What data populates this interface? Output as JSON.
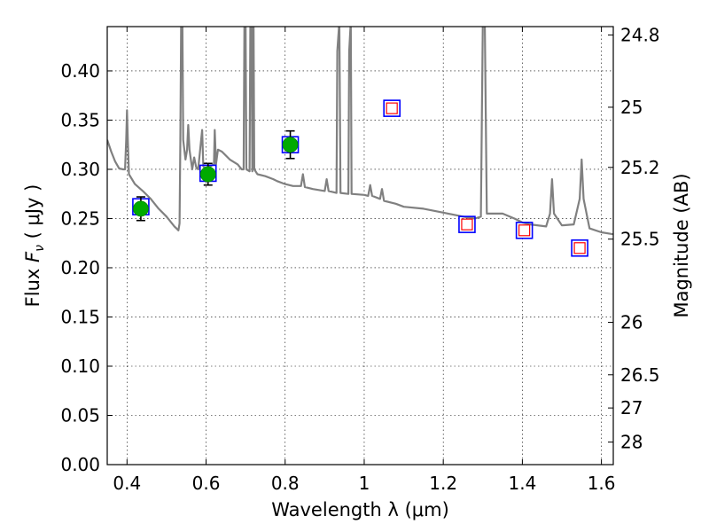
{
  "chart_data": {
    "type": "scatter",
    "xlabel": "Wavelength  λ (μm)",
    "ylabel": "Flux  F_ν  ( μJy )",
    "ylabel_parts": {
      "prefix": "Flux  ",
      "var": "F",
      "sub": "ν",
      "suffix": "  ( μJy )"
    },
    "y2label": "Magnitude (AB)",
    "xlim": [
      0.35,
      1.63
    ],
    "ylim": [
      0.0,
      0.445
    ],
    "grid": true,
    "xticks": [
      {
        "value": 0.4,
        "label": "0.4"
      },
      {
        "value": 0.6,
        "label": "0.6"
      },
      {
        "value": 0.8,
        "label": "0.8"
      },
      {
        "value": 1.0,
        "label": "1"
      },
      {
        "value": 1.2,
        "label": "1.2"
      },
      {
        "value": 1.4,
        "label": "1.4"
      },
      {
        "value": 1.6,
        "label": "1.6"
      }
    ],
    "yticks": [
      {
        "value": 0.0,
        "label": "0.00"
      },
      {
        "value": 0.05,
        "label": "0.05"
      },
      {
        "value": 0.1,
        "label": "0.10"
      },
      {
        "value": 0.15,
        "label": "0.15"
      },
      {
        "value": 0.2,
        "label": "0.20"
      },
      {
        "value": 0.25,
        "label": "0.25"
      },
      {
        "value": 0.3,
        "label": "0.30"
      },
      {
        "value": 0.35,
        "label": "0.35"
      },
      {
        "value": 0.4,
        "label": "0.40"
      }
    ],
    "y2ticks": [
      {
        "value": 24.8,
        "label": "24.8"
      },
      {
        "value": 25.0,
        "label": "25"
      },
      {
        "value": 25.2,
        "label": "25.2"
      },
      {
        "value": 25.5,
        "label": "25.5"
      },
      {
        "value": 26.0,
        "label": "26"
      },
      {
        "value": 26.5,
        "label": "26.5"
      },
      {
        "value": 27.0,
        "label": "27"
      },
      {
        "value": 28.0,
        "label": "28"
      }
    ],
    "series": [
      {
        "type": "line",
        "color": "#808080",
        "points": [
          [
            0.35,
            0.33
          ],
          [
            0.36,
            0.318
          ],
          [
            0.37,
            0.308
          ],
          [
            0.38,
            0.301
          ],
          [
            0.39,
            0.3
          ],
          [
            0.395,
            0.3
          ],
          [
            0.398,
            0.33
          ],
          [
            0.4,
            0.36
          ],
          [
            0.402,
            0.33
          ],
          [
            0.405,
            0.295
          ],
          [
            0.42,
            0.285
          ],
          [
            0.44,
            0.278
          ],
          [
            0.46,
            0.27
          ],
          [
            0.48,
            0.26
          ],
          [
            0.5,
            0.252
          ],
          [
            0.52,
            0.242
          ],
          [
            0.525,
            0.24
          ],
          [
            0.53,
            0.238
          ],
          [
            0.533,
            0.245
          ],
          [
            0.535,
            0.33
          ],
          [
            0.537,
            0.45
          ],
          [
            0.54,
            0.45
          ],
          [
            0.542,
            0.33
          ],
          [
            0.548,
            0.31
          ],
          [
            0.552,
            0.32
          ],
          [
            0.555,
            0.345
          ],
          [
            0.558,
            0.32
          ],
          [
            0.565,
            0.3
          ],
          [
            0.57,
            0.312
          ],
          [
            0.575,
            0.302
          ],
          [
            0.58,
            0.3
          ],
          [
            0.59,
            0.34
          ],
          [
            0.593,
            0.303
          ],
          [
            0.6,
            0.3
          ],
          [
            0.61,
            0.303
          ],
          [
            0.62,
            0.305
          ],
          [
            0.622,
            0.34
          ],
          [
            0.625,
            0.305
          ],
          [
            0.63,
            0.32
          ],
          [
            0.64,
            0.318
          ],
          [
            0.66,
            0.31
          ],
          [
            0.68,
            0.305
          ],
          [
            0.69,
            0.3
          ],
          [
            0.695,
            0.3
          ],
          [
            0.697,
            0.45
          ],
          [
            0.7,
            0.45
          ],
          [
            0.702,
            0.3
          ],
          [
            0.71,
            0.298
          ],
          [
            0.712,
            0.45
          ],
          [
            0.715,
            0.45
          ],
          [
            0.717,
            0.298
          ],
          [
            0.72,
            0.45
          ],
          [
            0.722,
            0.3
          ],
          [
            0.73,
            0.295
          ],
          [
            0.75,
            0.293
          ],
          [
            0.77,
            0.29
          ],
          [
            0.78,
            0.288
          ],
          [
            0.8,
            0.285
          ],
          [
            0.82,
            0.283
          ],
          [
            0.84,
            0.283
          ],
          [
            0.845,
            0.295
          ],
          [
            0.85,
            0.282
          ],
          [
            0.87,
            0.28
          ],
          [
            0.9,
            0.278
          ],
          [
            0.905,
            0.29
          ],
          [
            0.91,
            0.278
          ],
          [
            0.93,
            0.276
          ],
          [
            0.932,
            0.42
          ],
          [
            0.937,
            0.45
          ],
          [
            0.94,
            0.276
          ],
          [
            0.96,
            0.275
          ],
          [
            0.962,
            0.42
          ],
          [
            0.966,
            0.45
          ],
          [
            0.968,
            0.275
          ],
          [
            1.0,
            0.274
          ],
          [
            1.01,
            0.273
          ],
          [
            1.015,
            0.284
          ],
          [
            1.02,
            0.273
          ],
          [
            1.04,
            0.27
          ],
          [
            1.045,
            0.28
          ],
          [
            1.05,
            0.268
          ],
          [
            1.08,
            0.265
          ],
          [
            1.1,
            0.262
          ],
          [
            1.15,
            0.26
          ],
          [
            1.2,
            0.256
          ],
          [
            1.25,
            0.252
          ],
          [
            1.28,
            0.25
          ],
          [
            1.295,
            0.252
          ],
          [
            1.3,
            0.45
          ],
          [
            1.305,
            0.45
          ],
          [
            1.31,
            0.255
          ],
          [
            1.35,
            0.255
          ],
          [
            1.38,
            0.25
          ],
          [
            1.4,
            0.246
          ],
          [
            1.42,
            0.244
          ],
          [
            1.46,
            0.242
          ],
          [
            1.47,
            0.255
          ],
          [
            1.475,
            0.29
          ],
          [
            1.48,
            0.255
          ],
          [
            1.5,
            0.243
          ],
          [
            1.53,
            0.244
          ],
          [
            1.545,
            0.27
          ],
          [
            1.55,
            0.31
          ],
          [
            1.555,
            0.27
          ],
          [
            1.57,
            0.24
          ],
          [
            1.6,
            0.236
          ],
          [
            1.63,
            0.234
          ]
        ]
      },
      {
        "type": "marker",
        "marker": "blue-square",
        "color": "#0000ff",
        "points": [
          [
            0.435,
            0.262
          ],
          [
            0.605,
            0.296
          ],
          [
            0.813,
            0.325
          ],
          [
            1.07,
            0.362
          ],
          [
            1.26,
            0.244
          ],
          [
            1.405,
            0.238
          ],
          [
            1.545,
            0.22
          ]
        ]
      },
      {
        "type": "marker",
        "marker": "red-square",
        "color": "#ff0000",
        "points": [
          [
            1.07,
            0.362
          ],
          [
            1.26,
            0.244
          ],
          [
            1.405,
            0.238
          ],
          [
            1.545,
            0.22
          ]
        ]
      },
      {
        "type": "marker",
        "marker": "green-circle",
        "color": "#00aa00",
        "points": [
          [
            0.435,
            0.26
          ],
          [
            0.605,
            0.295
          ],
          [
            0.813,
            0.325
          ]
        ],
        "errors": [
          0.012,
          0.011,
          0.014
        ]
      }
    ]
  }
}
